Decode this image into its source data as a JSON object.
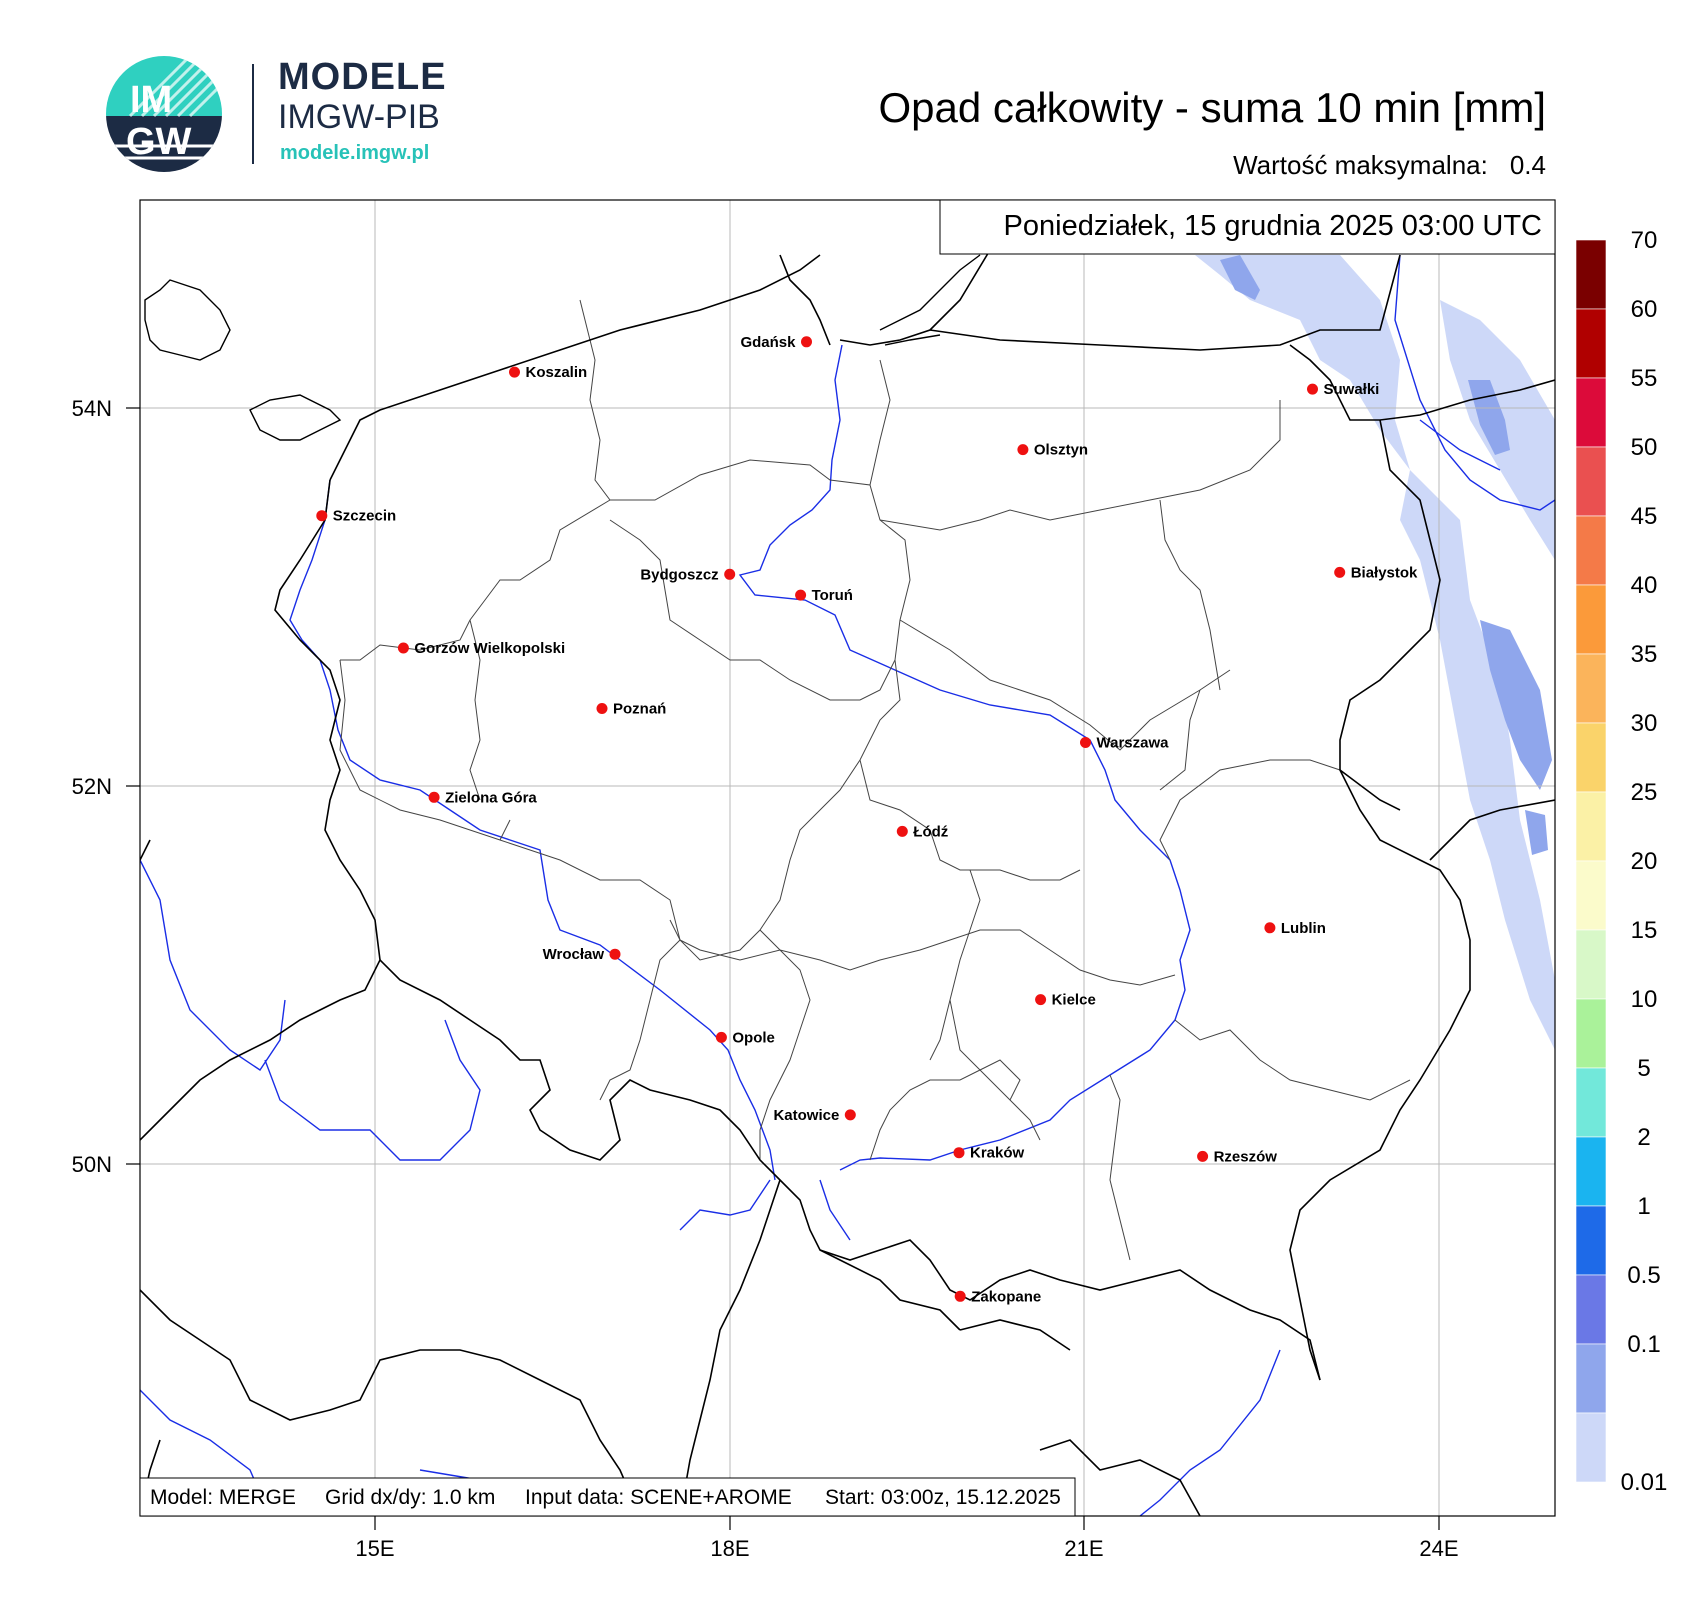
{
  "logo": {
    "badge_top": "IM",
    "badge_bottom": "GW",
    "name": "MODELE",
    "org": "IMGW-PIB",
    "url": "modele.imgw.pl"
  },
  "title": "Opad całkowity - suma 10 min [mm]",
  "max_value": {
    "label": "Wartość maksymalna:",
    "value": "0.4"
  },
  "timestamp": "Poniedziałek, 15 grudnia 2025 03:00 UTC",
  "footer": {
    "model": "Model: MERGE",
    "grid": "Grid dx/dy: 1.0 km",
    "input": "Input data: SCENE+AROME",
    "start": "Start: 03:00z, 15.12.2025"
  },
  "axes": {
    "lat_labels": [
      "54N",
      "52N",
      "50N"
    ],
    "lon_labels": [
      "15E",
      "18E",
      "21E",
      "24E"
    ]
  },
  "colorbar": {
    "labels": [
      "70",
      "60",
      "55",
      "50",
      "45",
      "40",
      "35",
      "30",
      "25",
      "20",
      "15",
      "10",
      "5",
      "2",
      "1",
      "0.5",
      "0.1",
      "0.01"
    ],
    "colors": [
      "#7a0000",
      "#b00000",
      "#dc0b3a",
      "#ea5050",
      "#f47a48",
      "#fb9a3a",
      "#fbb45b",
      "#fad36a",
      "#fbf1a6",
      "#fbfbcb",
      "#d8f8c8",
      "#aaf29a",
      "#72e8da",
      "#1ab4f0",
      "#1e6ae8",
      "#6a78e6",
      "#8fa6ec",
      "#cdd8f8"
    ]
  },
  "cities": [
    {
      "name": "Gdańsk",
      "lon": 18.65,
      "lat": 54.35
    },
    {
      "name": "Koszalin",
      "lon": 16.18,
      "lat": 54.19
    },
    {
      "name": "Szczecin",
      "lon": 14.55,
      "lat": 53.43
    },
    {
      "name": "Suwałki",
      "lon": 22.93,
      "lat": 54.1
    },
    {
      "name": "Olsztyn",
      "lon": 20.48,
      "lat": 53.78
    },
    {
      "name": "Bydgoszcz",
      "lon": 18.0,
      "lat": 53.12
    },
    {
      "name": "Toruń",
      "lon": 18.6,
      "lat": 53.01
    },
    {
      "name": "Białystok",
      "lon": 23.16,
      "lat": 53.13
    },
    {
      "name": "Gorzów Wielkopolski",
      "lon": 15.24,
      "lat": 52.73
    },
    {
      "name": "Poznań",
      "lon": 16.92,
      "lat": 52.41
    },
    {
      "name": "Warszawa",
      "lon": 21.01,
      "lat": 52.23
    },
    {
      "name": "Zielona Góra",
      "lon": 15.5,
      "lat": 51.94
    },
    {
      "name": "Łódź",
      "lon": 19.46,
      "lat": 51.76
    },
    {
      "name": "Lublin",
      "lon": 22.57,
      "lat": 51.25
    },
    {
      "name": "Wrocław",
      "lon": 17.03,
      "lat": 51.11
    },
    {
      "name": "Kielce",
      "lon": 20.63,
      "lat": 50.87
    },
    {
      "name": "Opole",
      "lon": 17.93,
      "lat": 50.67
    },
    {
      "name": "Katowice",
      "lon": 19.02,
      "lat": 50.26
    },
    {
      "name": "Kraków",
      "lon": 19.94,
      "lat": 50.06
    },
    {
      "name": "Rzeszów",
      "lon": 22.0,
      "lat": 50.04
    },
    {
      "name": "Zakopane",
      "lon": 19.95,
      "lat": 49.3
    }
  ]
}
